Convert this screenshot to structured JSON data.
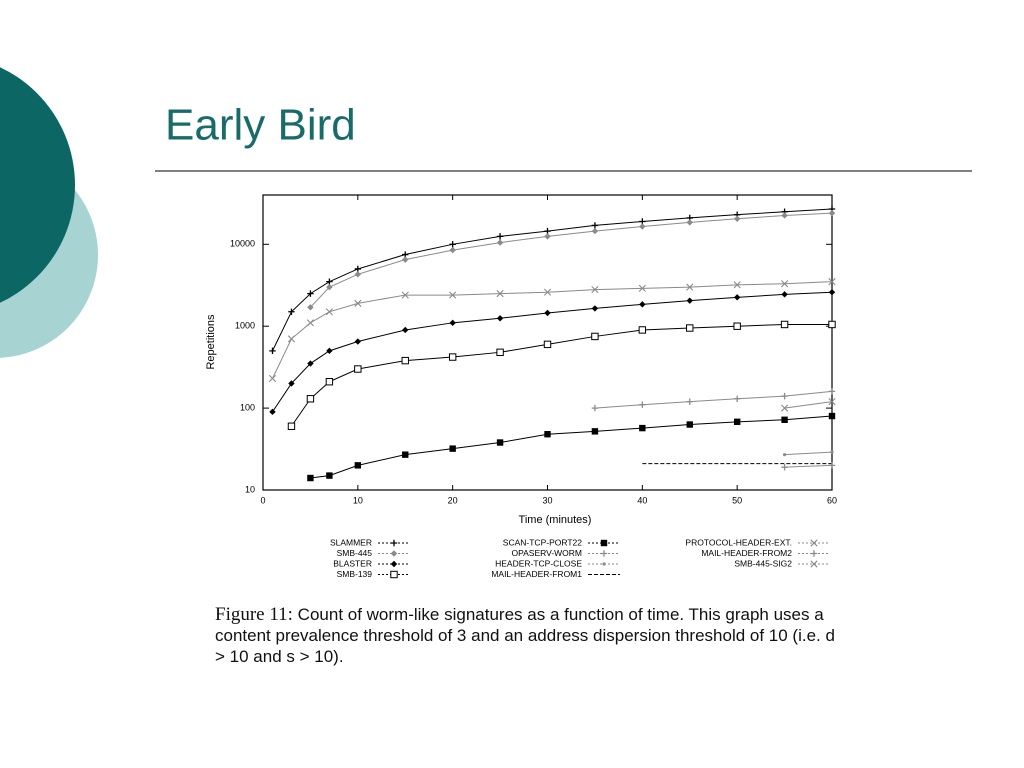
{
  "slide_title": "Early Bird",
  "chart_data": {
    "type": "line",
    "log_y": true,
    "x_label": "Time (minutes)",
    "y_label": "Repetitions",
    "x": [
      1,
      3,
      5,
      7,
      10,
      15,
      20,
      25,
      30,
      35,
      40,
      45,
      50,
      55,
      60
    ],
    "xlim": [
      0,
      60
    ],
    "xticks": [
      0,
      10,
      20,
      30,
      40,
      50,
      60
    ],
    "ylim": [
      10,
      40000
    ],
    "yticks": [
      10,
      100,
      1000,
      10000
    ],
    "series": [
      {
        "name": "SLAMMER",
        "color": "#000000",
        "marker": "plus",
        "values": [
          500,
          1500,
          2500,
          3500,
          5000,
          7500,
          10000,
          12500,
          14500,
          17000,
          19000,
          21000,
          23000,
          25000,
          27000
        ]
      },
      {
        "name": "SMB-445",
        "color": "#8a8a8a",
        "marker": "diamond",
        "values": [
          null,
          null,
          1700,
          3000,
          4300,
          6500,
          8500,
          10500,
          12500,
          14500,
          16500,
          18500,
          20500,
          22500,
          24000
        ]
      },
      {
        "name": "BLASTER",
        "color": "#000000",
        "marker": "diamond",
        "values": [
          90,
          200,
          350,
          500,
          650,
          900,
          1100,
          1250,
          1450,
          1650,
          1850,
          2050,
          2250,
          2450,
          2600
        ]
      },
      {
        "name": "SMB-139",
        "color": "#000000",
        "marker": "square-open",
        "values": [
          null,
          60,
          130,
          210,
          300,
          380,
          420,
          480,
          600,
          750,
          900,
          950,
          1000,
          1050,
          1050
        ]
      },
      {
        "name": "SCAN-TCP-PORT22",
        "color": "#000000",
        "marker": "square",
        "values": [
          null,
          null,
          14,
          15,
          20,
          27,
          32,
          38,
          48,
          52,
          57,
          63,
          68,
          72,
          80
        ]
      },
      {
        "name": "OPASERV-WORM",
        "color": "#8a8a8a",
        "marker": "plus",
        "values": [
          null,
          null,
          null,
          null,
          null,
          null,
          null,
          null,
          null,
          100,
          110,
          120,
          130,
          140,
          160
        ]
      },
      {
        "name": "HEADER-TCP-CLOSE",
        "color": "#8a8a8a",
        "marker": "dot",
        "values": [
          null,
          null,
          null,
          null,
          null,
          null,
          null,
          null,
          null,
          null,
          null,
          null,
          null,
          27,
          29
        ]
      },
      {
        "name": "MAIL-HEADER-FROM1",
        "color": "#000000",
        "marker": "none",
        "line_style": "dashed",
        "values": [
          null,
          null,
          null,
          null,
          null,
          null,
          null,
          null,
          null,
          null,
          21,
          21,
          21,
          21,
          21
        ]
      },
      {
        "name": "PROTOCOL-HEADER-EXT.",
        "color": "#8a8a8a",
        "marker": "x",
        "values": [
          230,
          700,
          1100,
          1500,
          1900,
          2400,
          2400,
          2500,
          2600,
          2800,
          2900,
          3000,
          3200,
          3300,
          3500
        ]
      },
      {
        "name": "MAIL-HEADER-FROM2",
        "color": "#8a8a8a",
        "marker": "plus",
        "values": [
          null,
          null,
          null,
          null,
          null,
          null,
          null,
          null,
          null,
          null,
          null,
          null,
          null,
          19,
          20
        ]
      },
      {
        "name": "SMB-445-SIG2",
        "color": "#8a8a8a",
        "marker": "x",
        "values": [
          null,
          null,
          null,
          null,
          null,
          null,
          null,
          null,
          null,
          null,
          null,
          null,
          null,
          100,
          120
        ]
      }
    ]
  },
  "caption": {
    "label": "Figure 11:",
    "text": "Count of worm-like signatures as a function of time. This graph uses a content prevalence threshold of 3 and an address dispersion threshold of 10 (i.e. d > 10 and s > 10)."
  }
}
